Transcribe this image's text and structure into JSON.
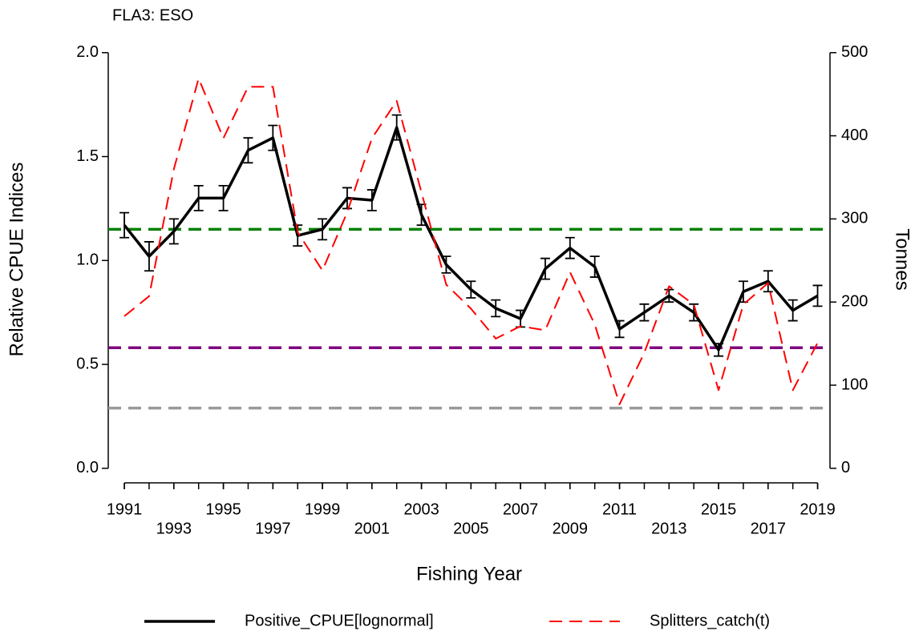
{
  "chart_data": {
    "type": "line",
    "title": "FLA3: ESO",
    "xlabel": "Fishing Year",
    "ylabel": "Relative CPUE Indices",
    "y2label": "Tonnes",
    "x": [
      1991,
      1992,
      1993,
      1994,
      1995,
      1996,
      1997,
      1998,
      1999,
      2000,
      2001,
      2002,
      2003,
      2004,
      2005,
      2006,
      2007,
      2008,
      2009,
      2010,
      2011,
      2012,
      2013,
      2014,
      2015,
      2016,
      2017,
      2018,
      2019
    ],
    "series": [
      {
        "name": "Positive_CPUE[lognormal]",
        "color": "#000000",
        "style": "solid",
        "values": [
          1.17,
          1.02,
          1.14,
          1.3,
          1.3,
          1.53,
          1.59,
          1.12,
          1.15,
          1.3,
          1.29,
          1.64,
          1.22,
          0.98,
          0.86,
          0.77,
          0.72,
          0.96,
          1.06,
          0.97,
          0.67,
          0.75,
          0.83,
          0.75,
          0.57,
          0.85,
          0.9,
          0.76,
          0.83
        ],
        "errors": [
          0.06,
          0.07,
          0.06,
          0.06,
          0.06,
          0.06,
          0.06,
          0.05,
          0.05,
          0.05,
          0.05,
          0.06,
          0.05,
          0.04,
          0.04,
          0.04,
          0.04,
          0.05,
          0.05,
          0.05,
          0.04,
          0.04,
          0.03,
          0.04,
          0.03,
          0.05,
          0.05,
          0.05,
          0.05
        ]
      },
      {
        "name": "Splitters_catch(t)",
        "color": "#ff0000",
        "style": "dashed",
        "axis": "y2",
        "values": [
          183,
          207,
          360,
          469,
          397,
          459,
          459,
          284,
          238,
          308,
          397,
          442,
          332,
          221,
          192,
          156,
          171,
          166,
          236,
          173,
          77,
          139,
          219,
          197,
          94,
          197,
          223,
          94,
          151
        ]
      }
    ],
    "reference_lines": [
      {
        "value": 1.15,
        "color": "#008000"
      },
      {
        "value": 0.58,
        "color": "#800080"
      },
      {
        "value": 0.29,
        "color": "#999999"
      }
    ],
    "xlim": [
      1990.35,
      2019.5
    ],
    "xticks": [
      1991,
      1993,
      1995,
      1997,
      1999,
      2001,
      2003,
      2005,
      2007,
      2009,
      2011,
      2013,
      2015,
      2017,
      2019
    ],
    "ylim": [
      -0.07,
      2.08
    ],
    "yticks": [
      {
        "value": 0,
        "label": "0.0"
      },
      {
        "value": 0.5,
        "label": "0.5"
      },
      {
        "value": 1,
        "label": "1.0"
      },
      {
        "value": 1.5,
        "label": "1.5"
      },
      {
        "value": 2,
        "label": "2.0"
      }
    ],
    "y2lim": [
      -17.5,
      520
    ],
    "y2ticks": [
      0,
      100,
      200,
      300,
      400,
      500
    ],
    "legend": "bottom"
  }
}
